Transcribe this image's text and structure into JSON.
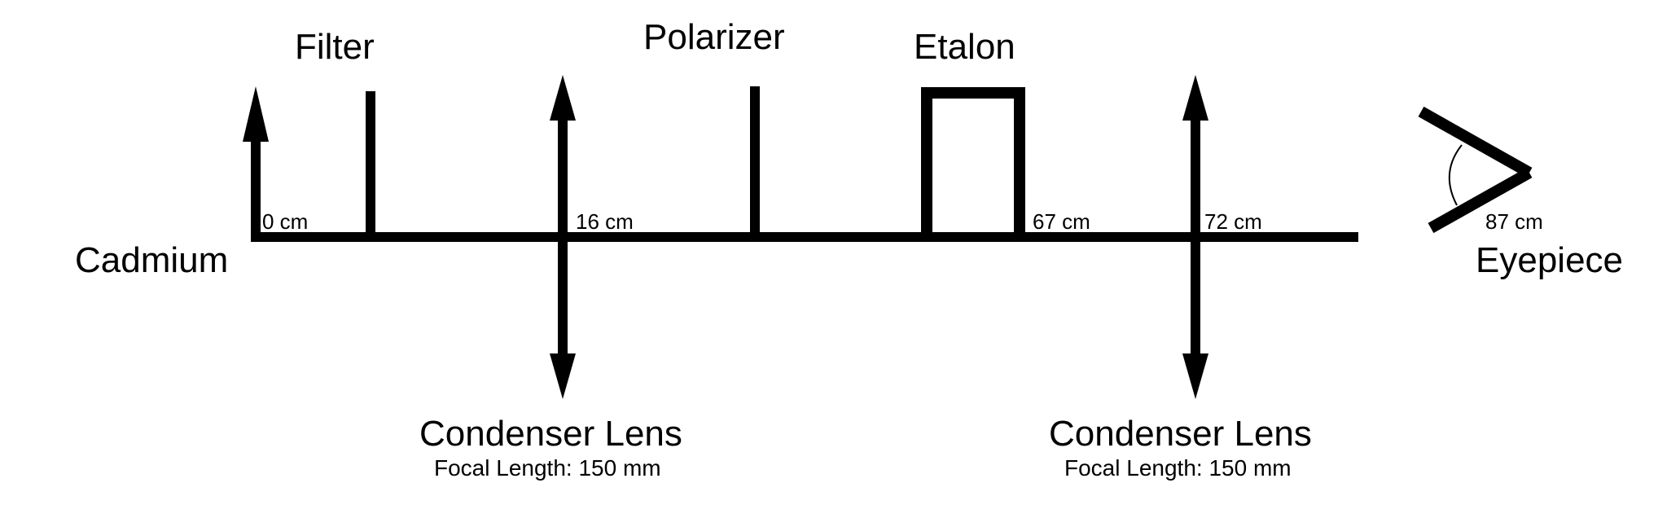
{
  "labels": {
    "source": "Cadmium",
    "filter": "Filter",
    "polarizer": "Polarizer",
    "etalon": "Etalon",
    "eyepiece": "Eyepiece",
    "lens1": {
      "name": "Condenser Lens",
      "focal": "Focal Length: 150 mm"
    },
    "lens2": {
      "name": "Condenser Lens",
      "focal": "Focal Length: 150 mm"
    }
  },
  "distances": {
    "d0": "0 cm",
    "d16": "16 cm",
    "d67": "67 cm",
    "d72": "72 cm",
    "d87": "87 cm"
  },
  "colors": {
    "ink": "#000000",
    "background": "#ffffff"
  }
}
